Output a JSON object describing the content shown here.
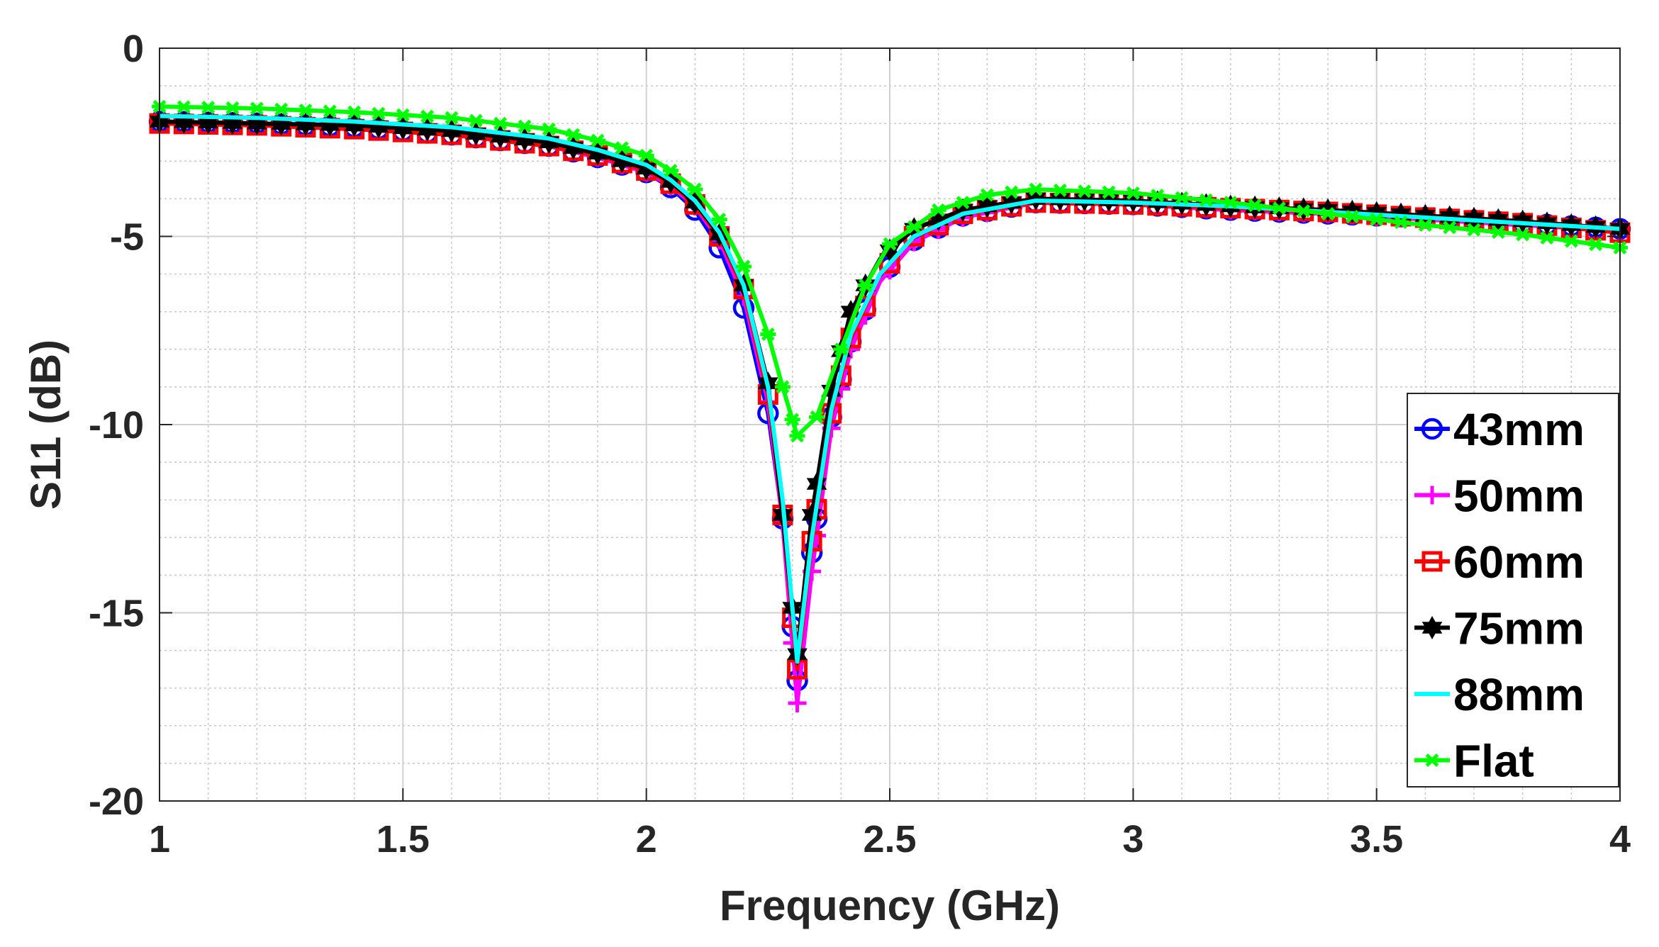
{
  "chart_data": {
    "type": "line",
    "title": "",
    "xlabel": "Frequency (GHz)",
    "ylabel": "S11 (dB)",
    "xlim": [
      1,
      4
    ],
    "ylim": [
      -20,
      0
    ],
    "xticks": [
      1,
      1.5,
      2,
      2.5,
      3,
      3.5,
      4
    ],
    "xtick_labels": [
      "1",
      "1.5",
      "2",
      "2.5",
      "3",
      "3.5",
      "4"
    ],
    "yticks": [
      0,
      -5,
      -10,
      -15,
      -20
    ],
    "ytick_labels": [
      "0",
      "-5",
      "-10",
      "-15",
      "-20"
    ],
    "grid": true,
    "minor_grid": true,
    "legend_position": "bottom-right",
    "series": [
      {
        "name": "43mm",
        "color": "#0000FF",
        "marker": "circle",
        "points": [
          [
            1.0,
            -1.95
          ],
          [
            1.2,
            -2.0
          ],
          [
            1.4,
            -2.1
          ],
          [
            1.6,
            -2.3
          ],
          [
            1.8,
            -2.6
          ],
          [
            1.9,
            -2.9
          ],
          [
            2.0,
            -3.3
          ],
          [
            2.05,
            -3.7
          ],
          [
            2.1,
            -4.3
          ],
          [
            2.15,
            -5.3
          ],
          [
            2.2,
            -6.9
          ],
          [
            2.25,
            -9.7
          ],
          [
            2.28,
            -12.5
          ],
          [
            2.31,
            -16.8
          ],
          [
            2.34,
            -13.4
          ],
          [
            2.38,
            -9.8
          ],
          [
            2.42,
            -7.8
          ],
          [
            2.48,
            -6.1
          ],
          [
            2.55,
            -5.1
          ],
          [
            2.65,
            -4.45
          ],
          [
            2.8,
            -4.1
          ],
          [
            3.0,
            -4.15
          ],
          [
            3.2,
            -4.3
          ],
          [
            3.4,
            -4.4
          ],
          [
            3.6,
            -4.5
          ],
          [
            3.8,
            -4.65
          ],
          [
            4.0,
            -4.8
          ]
        ]
      },
      {
        "name": "50mm",
        "color": "#FF00FF",
        "marker": "plus",
        "points": [
          [
            1.0,
            -1.95
          ],
          [
            1.2,
            -2.0
          ],
          [
            1.4,
            -2.1
          ],
          [
            1.6,
            -2.3
          ],
          [
            1.8,
            -2.6
          ],
          [
            1.9,
            -2.9
          ],
          [
            2.0,
            -3.3
          ],
          [
            2.05,
            -3.65
          ],
          [
            2.1,
            -4.2
          ],
          [
            2.15,
            -5.1
          ],
          [
            2.2,
            -6.6
          ],
          [
            2.25,
            -9.4
          ],
          [
            2.28,
            -12.6
          ],
          [
            2.31,
            -17.4
          ],
          [
            2.34,
            -13.9
          ],
          [
            2.38,
            -10.1
          ],
          [
            2.42,
            -8.0
          ],
          [
            2.48,
            -6.2
          ],
          [
            2.55,
            -5.15
          ],
          [
            2.65,
            -4.5
          ],
          [
            2.8,
            -4.1
          ],
          [
            3.0,
            -4.15
          ],
          [
            3.2,
            -4.3
          ],
          [
            3.4,
            -4.4
          ],
          [
            3.6,
            -4.55
          ],
          [
            3.8,
            -4.7
          ],
          [
            4.0,
            -4.85
          ]
        ]
      },
      {
        "name": "60mm",
        "color": "#FF0000",
        "marker": "square",
        "points": [
          [
            1.0,
            -2.0
          ],
          [
            1.2,
            -2.05
          ],
          [
            1.4,
            -2.15
          ],
          [
            1.6,
            -2.3
          ],
          [
            1.8,
            -2.6
          ],
          [
            1.9,
            -2.85
          ],
          [
            2.0,
            -3.25
          ],
          [
            2.05,
            -3.6
          ],
          [
            2.1,
            -4.15
          ],
          [
            2.15,
            -5.0
          ],
          [
            2.2,
            -6.4
          ],
          [
            2.25,
            -9.2
          ],
          [
            2.28,
            -12.4
          ],
          [
            2.31,
            -16.5
          ],
          [
            2.34,
            -13.1
          ],
          [
            2.38,
            -9.7
          ],
          [
            2.42,
            -7.7
          ],
          [
            2.48,
            -6.0
          ],
          [
            2.55,
            -5.0
          ],
          [
            2.65,
            -4.4
          ],
          [
            2.8,
            -4.1
          ],
          [
            3.0,
            -4.15
          ],
          [
            3.2,
            -4.25
          ],
          [
            3.4,
            -4.35
          ],
          [
            3.6,
            -4.5
          ],
          [
            3.8,
            -4.65
          ],
          [
            4.0,
            -4.9
          ]
        ]
      },
      {
        "name": "75mm",
        "color": "#000000",
        "marker": "hexagram",
        "points": [
          [
            1.0,
            -1.95
          ],
          [
            1.2,
            -2.0
          ],
          [
            1.4,
            -2.05
          ],
          [
            1.6,
            -2.2
          ],
          [
            1.8,
            -2.5
          ],
          [
            1.9,
            -2.8
          ],
          [
            2.0,
            -3.2
          ],
          [
            2.05,
            -3.55
          ],
          [
            2.1,
            -4.1
          ],
          [
            2.15,
            -4.95
          ],
          [
            2.2,
            -6.3
          ],
          [
            2.25,
            -8.9
          ],
          [
            2.28,
            -12.4
          ],
          [
            2.31,
            -16.1
          ],
          [
            2.34,
            -12.4
          ],
          [
            2.38,
            -9.1
          ],
          [
            2.42,
            -7.0
          ],
          [
            2.48,
            -5.6
          ],
          [
            2.55,
            -4.8
          ],
          [
            2.65,
            -4.3
          ],
          [
            2.8,
            -4.0
          ],
          [
            3.0,
            -4.05
          ],
          [
            3.2,
            -4.2
          ],
          [
            3.4,
            -4.3
          ],
          [
            3.6,
            -4.45
          ],
          [
            3.8,
            -4.6
          ],
          [
            4.0,
            -4.8
          ]
        ]
      },
      {
        "name": "88mm",
        "color": "#00FFFF",
        "marker": "none",
        "points": [
          [
            1.0,
            -1.8
          ],
          [
            1.2,
            -1.85
          ],
          [
            1.4,
            -1.95
          ],
          [
            1.6,
            -2.1
          ],
          [
            1.8,
            -2.4
          ],
          [
            1.9,
            -2.7
          ],
          [
            2.0,
            -3.1
          ],
          [
            2.05,
            -3.5
          ],
          [
            2.1,
            -4.05
          ],
          [
            2.15,
            -4.9
          ],
          [
            2.2,
            -6.3
          ],
          [
            2.25,
            -9.0
          ],
          [
            2.28,
            -12.0
          ],
          [
            2.31,
            -16.3
          ],
          [
            2.34,
            -13.0
          ],
          [
            2.38,
            -9.6
          ],
          [
            2.42,
            -7.6
          ],
          [
            2.48,
            -6.0
          ],
          [
            2.55,
            -5.0
          ],
          [
            2.65,
            -4.4
          ],
          [
            2.8,
            -4.05
          ],
          [
            3.0,
            -4.1
          ],
          [
            3.2,
            -4.2
          ],
          [
            3.4,
            -4.35
          ],
          [
            3.6,
            -4.5
          ],
          [
            3.8,
            -4.65
          ],
          [
            4.0,
            -4.8
          ]
        ]
      },
      {
        "name": "Flat",
        "color": "#00FF00",
        "marker": "asterisk",
        "points": [
          [
            1.0,
            -1.55
          ],
          [
            1.2,
            -1.6
          ],
          [
            1.4,
            -1.7
          ],
          [
            1.6,
            -1.85
          ],
          [
            1.8,
            -2.15
          ],
          [
            1.9,
            -2.45
          ],
          [
            2.0,
            -2.85
          ],
          [
            2.05,
            -3.25
          ],
          [
            2.1,
            -3.75
          ],
          [
            2.15,
            -4.55
          ],
          [
            2.2,
            -5.8
          ],
          [
            2.25,
            -7.6
          ],
          [
            2.28,
            -9.0
          ],
          [
            2.31,
            -10.3
          ],
          [
            2.35,
            -9.8
          ],
          [
            2.4,
            -8.0
          ],
          [
            2.45,
            -6.3
          ],
          [
            2.5,
            -5.2
          ],
          [
            2.6,
            -4.3
          ],
          [
            2.7,
            -3.9
          ],
          [
            2.8,
            -3.75
          ],
          [
            3.0,
            -3.85
          ],
          [
            3.2,
            -4.1
          ],
          [
            3.4,
            -4.4
          ],
          [
            3.6,
            -4.7
          ],
          [
            3.8,
            -4.95
          ],
          [
            4.0,
            -5.3
          ]
        ]
      }
    ]
  }
}
